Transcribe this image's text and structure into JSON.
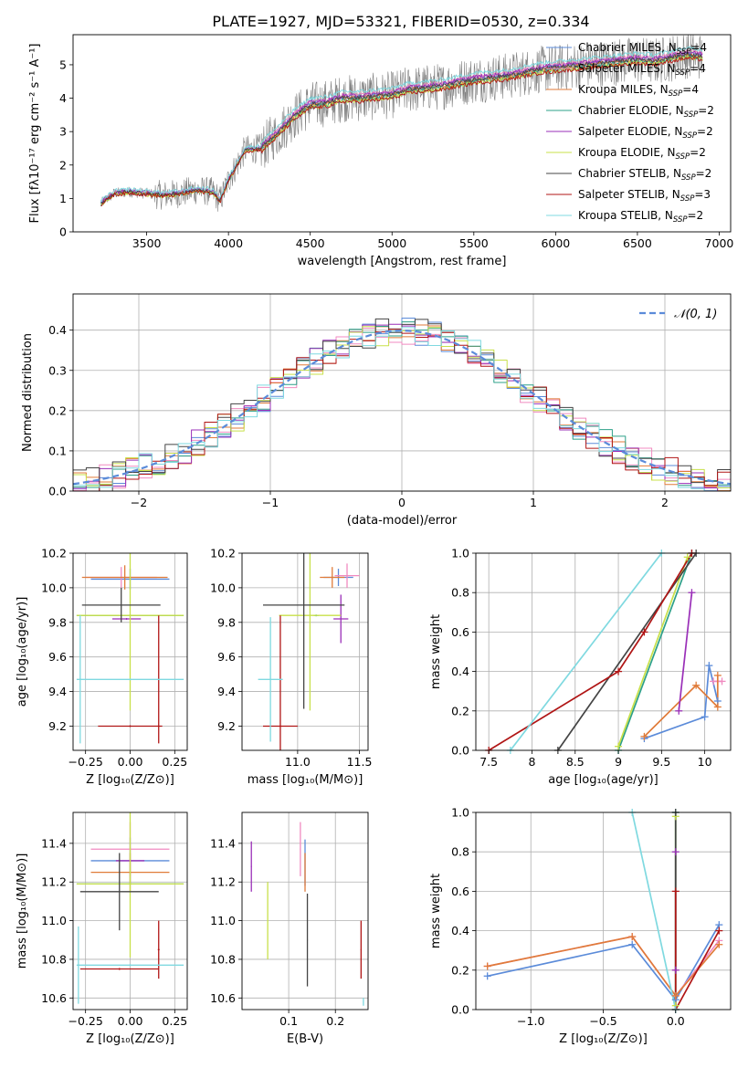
{
  "figure": {
    "title": "PLATE=1927, MJD=53321, FIBERID=0530, z=0.334"
  },
  "series": [
    {
      "name": "Chabrier MILES",
      "nssp": "4",
      "color": "#5b8bd9"
    },
    {
      "name": "Salpeter MILES",
      "nssp": "4",
      "color": "#f08ac0"
    },
    {
      "name": "Kroupa MILES",
      "nssp": "4",
      "color": "#e07b39"
    },
    {
      "name": "Chabrier ELODIE",
      "nssp": "2",
      "color": "#2ca088"
    },
    {
      "name": "Salpeter ELODIE",
      "nssp": "2",
      "color": "#9a2fb8"
    },
    {
      "name": "Kroupa ELODIE",
      "nssp": "2",
      "color": "#c8e04a"
    },
    {
      "name": "Chabrier STELIB",
      "nssp": "2",
      "color": "#444444"
    },
    {
      "name": "Salpeter STELIB",
      "nssp": "3",
      "color": "#b01515"
    },
    {
      "name": "Kroupa STELIB",
      "nssp": "2",
      "color": "#7fd9e0"
    }
  ],
  "chart_data": [
    {
      "id": "spectrum",
      "type": "line",
      "xlabel": "wavelength [Angstrom, rest frame]",
      "ylabel": "Flux [fλ10⁻¹⁷ erg cm⁻² s⁻¹ A⁻¹]",
      "xlim": [
        3050,
        7070
      ],
      "ylim": [
        0,
        5.9
      ],
      "xticks": [
        3500,
        4000,
        4500,
        5000,
        5500,
        6000,
        6500,
        7000
      ],
      "yticks": [
        0,
        1,
        2,
        3,
        4,
        5
      ],
      "grid": false,
      "legend": "top-right",
      "data_color": "#808080",
      "model_x": [
        3220,
        3300,
        3400,
        3500,
        3600,
        3700,
        3800,
        3900,
        3950,
        4000,
        4100,
        4200,
        4300,
        4400,
        4500,
        4600,
        4700,
        4800,
        4900,
        5000,
        5100,
        5200,
        5300,
        5400,
        5500,
        5600,
        5700,
        5800,
        5900,
        6000,
        6100,
        6200,
        6300,
        6400,
        6500,
        6600,
        6700,
        6800,
        6900
      ],
      "model_y": [
        0.85,
        1.15,
        1.2,
        1.15,
        1.1,
        1.15,
        1.25,
        1.2,
        0.95,
        1.55,
        2.45,
        2.5,
        2.95,
        3.45,
        3.8,
        3.85,
        4.0,
        4.0,
        4.05,
        4.1,
        4.25,
        4.3,
        4.35,
        4.45,
        4.55,
        4.6,
        4.65,
        4.75,
        4.85,
        4.9,
        4.95,
        5.0,
        5.05,
        5.1,
        5.15,
        5.1,
        5.2,
        5.3,
        5.25
      ],
      "model_ys_offset": [
        0.05,
        0.1,
        0.0,
        -0.05,
        0.08,
        -0.08,
        0.02,
        -0.1,
        0.2
      ],
      "data_range": [
        3220,
        6900
      ],
      "data_noise": 0.55
    },
    {
      "id": "residuals",
      "type": "histogram",
      "xlabel": "(data-model)/error",
      "ylabel": "Normed distribution",
      "xlim": [
        -2.5,
        2.5
      ],
      "ylim": [
        0,
        0.49
      ],
      "xticks": [
        -2,
        -1,
        0,
        1,
        2
      ],
      "yticks": [
        0.0,
        0.1,
        0.2,
        0.3,
        0.4
      ],
      "grid": true,
      "legend": "top-right",
      "legend_label": "𝒩(0, 1)",
      "bin_width": 0.1,
      "reference_curve": "normal",
      "reference_color": "#5b8bd9"
    },
    {
      "id": "age-vs-z",
      "type": "errorbar",
      "xlabel": "Z [log₁₀(Z/Z⊙)]",
      "ylabel": "age  [log₁₀(age/yr)]",
      "xlim": [
        -0.32,
        0.32
      ],
      "ylim": [
        9.06,
        10.2
      ],
      "xticks": [
        -0.25,
        0.0,
        0.25
      ],
      "xticklabels": [
        "−0.25",
        "0.00",
        "0.25"
      ],
      "yticks": [
        9.2,
        9.4,
        9.6,
        9.8,
        10.0,
        10.2
      ],
      "grid": true,
      "points": [
        {
          "s": 0,
          "x": 0.0,
          "y": 10.05,
          "xe": 0.22,
          "ye": 0.06
        },
        {
          "s": 1,
          "x": -0.05,
          "y": 10.06,
          "xe": 0.2,
          "ye": 0.06
        },
        {
          "s": 2,
          "x": -0.03,
          "y": 10.06,
          "xe": 0.24,
          "ye": 0.07
        },
        {
          "s": 3,
          "x": 0.0,
          "y": 9.84,
          "xe": 0.3,
          "ye": 0.005
        },
        {
          "s": 4,
          "x": -0.02,
          "y": 9.82,
          "xe": 0.08,
          "ye": 0.005
        },
        {
          "s": 5,
          "x": 0.0,
          "y": 9.84,
          "xe": 0.3,
          "ye": 0.55
        },
        {
          "s": 6,
          "x": -0.05,
          "y": 9.9,
          "xe": 0.22,
          "ye": 0.1
        },
        {
          "s": 7,
          "x": 0.0,
          "y": 9.2,
          "xe": 0.18,
          "ye": 0.005
        },
        {
          "s": 7,
          "x": 0.16,
          "y": 9.47,
          "xe": 0.005,
          "ye": 0.37
        },
        {
          "s": 8,
          "x": 0.0,
          "y": 9.47,
          "xe": 0.3,
          "ye": 0.005
        },
        {
          "s": 8,
          "x": -0.28,
          "y": 9.47,
          "xe": 0.005,
          "ye": 0.37
        }
      ]
    },
    {
      "id": "age-vs-mass",
      "type": "errorbar",
      "xlabel": "mass [log₁₀(M/M⊙)]",
      "xlim": [
        10.55,
        11.57
      ],
      "ylim": [
        9.06,
        10.2
      ],
      "xticks": [
        11.0,
        11.5
      ],
      "xticklabels": [
        "11.0",
        "11.5"
      ],
      "yticks": [
        9.2,
        9.4,
        9.6,
        9.8,
        10.0,
        10.2
      ],
      "grid": true,
      "points": [
        {
          "s": 0,
          "x": 11.33,
          "y": 10.06,
          "xe": 0.12,
          "ye": 0.05
        },
        {
          "s": 1,
          "x": 11.4,
          "y": 10.07,
          "xe": 0.1,
          "ye": 0.07
        },
        {
          "s": 2,
          "x": 11.28,
          "y": 10.06,
          "xe": 0.1,
          "ye": 0.06
        },
        {
          "s": 3,
          "x": 11.15,
          "y": 9.84,
          "xe": 0.02,
          "ye": 0.005
        },
        {
          "s": 4,
          "x": 11.35,
          "y": 9.82,
          "xe": 0.06,
          "ye": 0.14
        },
        {
          "s": 5,
          "x": 11.1,
          "y": 9.84,
          "xe": 0.25,
          "ye": 0.55
        },
        {
          "s": 6,
          "x": 11.05,
          "y": 9.9,
          "xe": 0.33,
          "ye": 0.6
        },
        {
          "s": 7,
          "x": 10.86,
          "y": 9.2,
          "xe": 0.14,
          "ye": 0.64
        },
        {
          "s": 8,
          "x": 10.78,
          "y": 9.47,
          "xe": 0.1,
          "ye": 0.36
        }
      ]
    },
    {
      "id": "weight-vs-age",
      "type": "line",
      "xlabel": "age  [log₁₀(age/yr)]",
      "ylabel": "mass weight",
      "xlim": [
        7.35,
        10.3
      ],
      "ylim": [
        0,
        1.0
      ],
      "xticks": [
        7.5,
        8.0,
        8.5,
        9.0,
        9.5,
        10.0
      ],
      "yticks": [
        0.0,
        0.2,
        0.4,
        0.6,
        0.8,
        1.0
      ],
      "grid": true,
      "series_points": [
        {
          "s": 0,
          "x": [
            9.3,
            10.0,
            10.05,
            10.15
          ],
          "y": [
            0.06,
            0.17,
            0.43,
            0.25
          ]
        },
        {
          "s": 1,
          "x": [
            10.1,
            10.2
          ],
          "y": [
            0.35,
            0.35
          ]
        },
        {
          "s": 2,
          "x": [
            9.3,
            9.9,
            10.15,
            10.15
          ],
          "y": [
            0.07,
            0.33,
            0.22,
            0.38
          ]
        },
        {
          "s": 3,
          "x": [
            9.0,
            9.85
          ],
          "y": [
            0.0,
            1.0
          ]
        },
        {
          "s": 4,
          "x": [
            9.7,
            9.85
          ],
          "y": [
            0.2,
            0.8
          ]
        },
        {
          "s": 5,
          "x": [
            9.0,
            9.8
          ],
          "y": [
            0.02,
            0.98
          ]
        },
        {
          "s": 6,
          "x": [
            8.3,
            9.9
          ],
          "y": [
            0.0,
            1.0
          ]
        },
        {
          "s": 7,
          "x": [
            7.5,
            9.0,
            9.3,
            9.85
          ],
          "y": [
            0.0,
            0.4,
            0.6,
            1.0
          ]
        },
        {
          "s": 8,
          "x": [
            7.75,
            9.5
          ],
          "y": [
            0.0,
            1.0
          ]
        }
      ]
    },
    {
      "id": "mass-vs-z",
      "type": "errorbar",
      "xlabel": "Z [log₁₀(Z/Z⊙)]",
      "ylabel": "mass [log₁₀(M/M⊙)]",
      "xlim": [
        -0.32,
        0.32
      ],
      "ylim": [
        10.54,
        11.56
      ],
      "xticks": [
        -0.25,
        0.0,
        0.25
      ],
      "xticklabels": [
        "−0.25",
        "0.00",
        "0.25"
      ],
      "yticks": [
        10.6,
        10.8,
        11.0,
        11.2,
        11.4
      ],
      "grid": true,
      "points": [
        {
          "s": 0,
          "x": 0.0,
          "y": 11.31,
          "xe": 0.22,
          "ye": 0.12
        },
        {
          "s": 1,
          "x": 0.0,
          "y": 11.37,
          "xe": 0.22,
          "ye": 0.14
        },
        {
          "s": 2,
          "x": 0.0,
          "y": 11.25,
          "xe": 0.22,
          "ye": 0.1
        },
        {
          "s": 3,
          "x": 0.0,
          "y": 11.19,
          "xe": 0.3,
          "ye": 0.005
        },
        {
          "s": 4,
          "x": 0.0,
          "y": 11.31,
          "xe": 0.08,
          "ye": 0.005
        },
        {
          "s": 5,
          "x": 0.0,
          "y": 11.19,
          "xe": 0.3,
          "ye": 0.38
        },
        {
          "s": 6,
          "x": -0.06,
          "y": 11.15,
          "xe": 0.22,
          "ye": 0.2
        },
        {
          "s": 7,
          "x": -0.06,
          "y": 10.75,
          "xe": 0.22,
          "ye": 0.005
        },
        {
          "s": 7,
          "x": 0.16,
          "y": 10.85,
          "xe": 0.005,
          "ye": 0.15
        },
        {
          "s": 8,
          "x": 0.0,
          "y": 10.77,
          "xe": 0.3,
          "ye": 0.005
        },
        {
          "s": 8,
          "x": -0.29,
          "y": 10.77,
          "xe": 0.005,
          "ye": 0.2
        }
      ]
    },
    {
      "id": "mass-vs-ebv",
      "type": "errorbar",
      "xlabel": "E(B-V)",
      "xlim": [
        0.0,
        0.27
      ],
      "ylim": [
        10.54,
        11.56
      ],
      "xticks": [
        0.1,
        0.2
      ],
      "xticklabels": [
        "0.1",
        "0.2"
      ],
      "yticks": [
        10.6,
        10.8,
        11.0,
        11.2,
        11.4
      ],
      "grid": true,
      "points": [
        {
          "s": 0,
          "x": 0.135,
          "y": 11.3,
          "xe": 0.001,
          "ye": 0.12
        },
        {
          "s": 1,
          "x": 0.125,
          "y": 11.37,
          "xe": 0.001,
          "ye": 0.14
        },
        {
          "s": 2,
          "x": 0.135,
          "y": 11.25,
          "xe": 0.001,
          "ye": 0.1
        },
        {
          "s": 4,
          "x": 0.02,
          "y": 11.28,
          "xe": 0.001,
          "ye": 0.13
        },
        {
          "s": 5,
          "x": 0.055,
          "y": 11.0,
          "xe": 0.001,
          "ye": 0.2
        },
        {
          "s": 6,
          "x": 0.14,
          "y": 10.9,
          "xe": 0.001,
          "ye": 0.24
        },
        {
          "s": 7,
          "x": 0.255,
          "y": 10.85,
          "xe": 0.001,
          "ye": 0.15
        },
        {
          "s": 8,
          "x": 0.26,
          "y": 10.58,
          "xe": 0.001,
          "ye": 0.02
        }
      ]
    },
    {
      "id": "weight-vs-z",
      "type": "line",
      "xlabel": "Z [log₁₀(Z/Z⊙)]",
      "ylabel": "mass weight",
      "xlim": [
        -1.38,
        0.38
      ],
      "ylim": [
        0,
        1.0
      ],
      "xticks": [
        -1.0,
        -0.5,
        0.0
      ],
      "xticklabels": [
        "−1.0",
        "−0.5",
        "0.0"
      ],
      "yticks": [
        0.0,
        0.2,
        0.4,
        0.6,
        0.8,
        1.0
      ],
      "grid": true,
      "series_points": [
        {
          "s": 0,
          "x": [
            -1.3,
            -0.3,
            0.0,
            0.3
          ],
          "y": [
            0.17,
            0.33,
            0.05,
            0.43
          ]
        },
        {
          "s": 1,
          "x": [
            -1.3,
            -0.3,
            0.0,
            0.3
          ],
          "y": [
            0.22,
            0.37,
            0.07,
            0.35
          ]
        },
        {
          "s": 2,
          "x": [
            -1.3,
            -0.3,
            0.0,
            0.3
          ],
          "y": [
            0.22,
            0.37,
            0.07,
            0.33
          ]
        },
        {
          "s": 3,
          "x": [
            0.0,
            0.0
          ],
          "y": [
            0.0,
            1.0
          ]
        },
        {
          "s": 4,
          "x": [
            0.0,
            0.0
          ],
          "y": [
            0.2,
            0.8
          ]
        },
        {
          "s": 5,
          "x": [
            0.0,
            0.0
          ],
          "y": [
            0.02,
            0.98
          ]
        },
        {
          "s": 6,
          "x": [
            0.0,
            0.0
          ],
          "y": [
            0.0,
            1.0
          ]
        },
        {
          "s": 7,
          "x": [
            0.0,
            0.0,
            0.3
          ],
          "y": [
            0.6,
            0.0,
            0.4
          ]
        },
        {
          "s": 8,
          "x": [
            -0.3,
            0.0
          ],
          "y": [
            1.0,
            0.0
          ]
        }
      ]
    }
  ]
}
